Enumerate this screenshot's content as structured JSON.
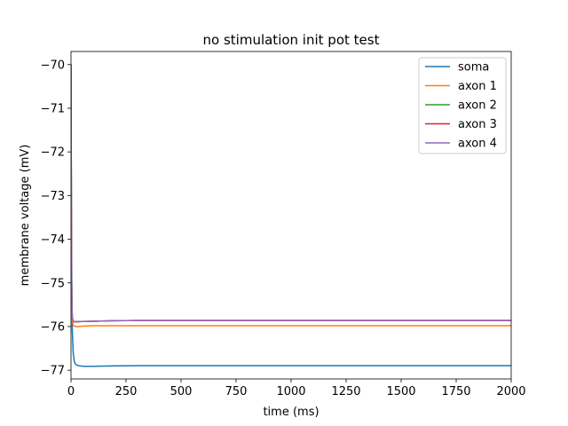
{
  "chart_data": {
    "type": "line",
    "title": "no stimulation init pot test",
    "xlabel": "time (ms)",
    "ylabel": "membrane voltage (mV)",
    "xlim": [
      0,
      2000
    ],
    "ylim": [
      -77.2,
      -69.7
    ],
    "xticks": [
      0,
      250,
      500,
      750,
      1000,
      1250,
      1500,
      1750,
      2000
    ],
    "yticks": [
      -77,
      -76,
      -75,
      -74,
      -73,
      -72,
      -71,
      -70
    ],
    "xtick_labels": [
      "0",
      "250",
      "500",
      "750",
      "1000",
      "1250",
      "1500",
      "1750",
      "2000"
    ],
    "ytick_labels": [
      "−77",
      "−76",
      "−75",
      "−74",
      "−73",
      "−72",
      "−71",
      "−70"
    ],
    "grid": false,
    "legend_position": "top-right",
    "series": [
      {
        "name": "soma",
        "color": "#1f77b4",
        "x": [
          0,
          2,
          4,
          6,
          10,
          15,
          20,
          30,
          40,
          60,
          80,
          100,
          150,
          200,
          300,
          500,
          1000,
          1500,
          2000
        ],
        "y": [
          -70.0,
          -73.5,
          -75.3,
          -76.1,
          -76.6,
          -76.8,
          -76.86,
          -76.89,
          -76.9,
          -76.91,
          -76.91,
          -76.91,
          -76.905,
          -76.9,
          -76.895,
          -76.895,
          -76.895,
          -76.895,
          -76.895
        ]
      },
      {
        "name": "axon 1",
        "color": "#ff7f0e",
        "x": [
          0,
          2,
          4,
          6,
          10,
          15,
          20,
          30,
          50,
          80,
          100,
          200,
          500,
          1000,
          1500,
          2000
        ],
        "y": [
          -70.0,
          -74.0,
          -75.5,
          -75.85,
          -75.97,
          -75.99,
          -76.0,
          -76.0,
          -75.99,
          -75.985,
          -75.98,
          -75.98,
          -75.98,
          -75.98,
          -75.98,
          -75.98
        ]
      },
      {
        "name": "axon 2",
        "color": "#2ca02c",
        "x": [
          0,
          2,
          4,
          6,
          10,
          15,
          20,
          30,
          50,
          100,
          200,
          300,
          500,
          1000,
          1500,
          2000
        ],
        "y": [
          -70.0,
          -74.3,
          -75.5,
          -75.8,
          -75.88,
          -75.89,
          -75.89,
          -75.89,
          -75.885,
          -75.88,
          -75.865,
          -75.86,
          -75.86,
          -75.86,
          -75.86,
          -75.86
        ]
      },
      {
        "name": "axon 3",
        "color": "#d62728",
        "x": [
          0,
          2,
          4,
          6,
          10,
          15,
          20,
          30,
          50,
          100,
          200,
          300,
          500,
          1000,
          1500,
          2000
        ],
        "y": [
          -70.0,
          -74.3,
          -75.5,
          -75.8,
          -75.88,
          -75.89,
          -75.89,
          -75.89,
          -75.885,
          -75.88,
          -75.865,
          -75.86,
          -75.86,
          -75.86,
          -75.86,
          -75.86
        ]
      },
      {
        "name": "axon 4",
        "color": "#9467bd",
        "x": [
          0,
          2,
          4,
          6,
          10,
          15,
          20,
          30,
          50,
          100,
          200,
          300,
          500,
          1000,
          1500,
          2000
        ],
        "y": [
          -70.0,
          -74.3,
          -75.5,
          -75.8,
          -75.88,
          -75.89,
          -75.89,
          -75.89,
          -75.885,
          -75.88,
          -75.865,
          -75.86,
          -75.86,
          -75.86,
          -75.86,
          -75.86
        ]
      }
    ]
  }
}
